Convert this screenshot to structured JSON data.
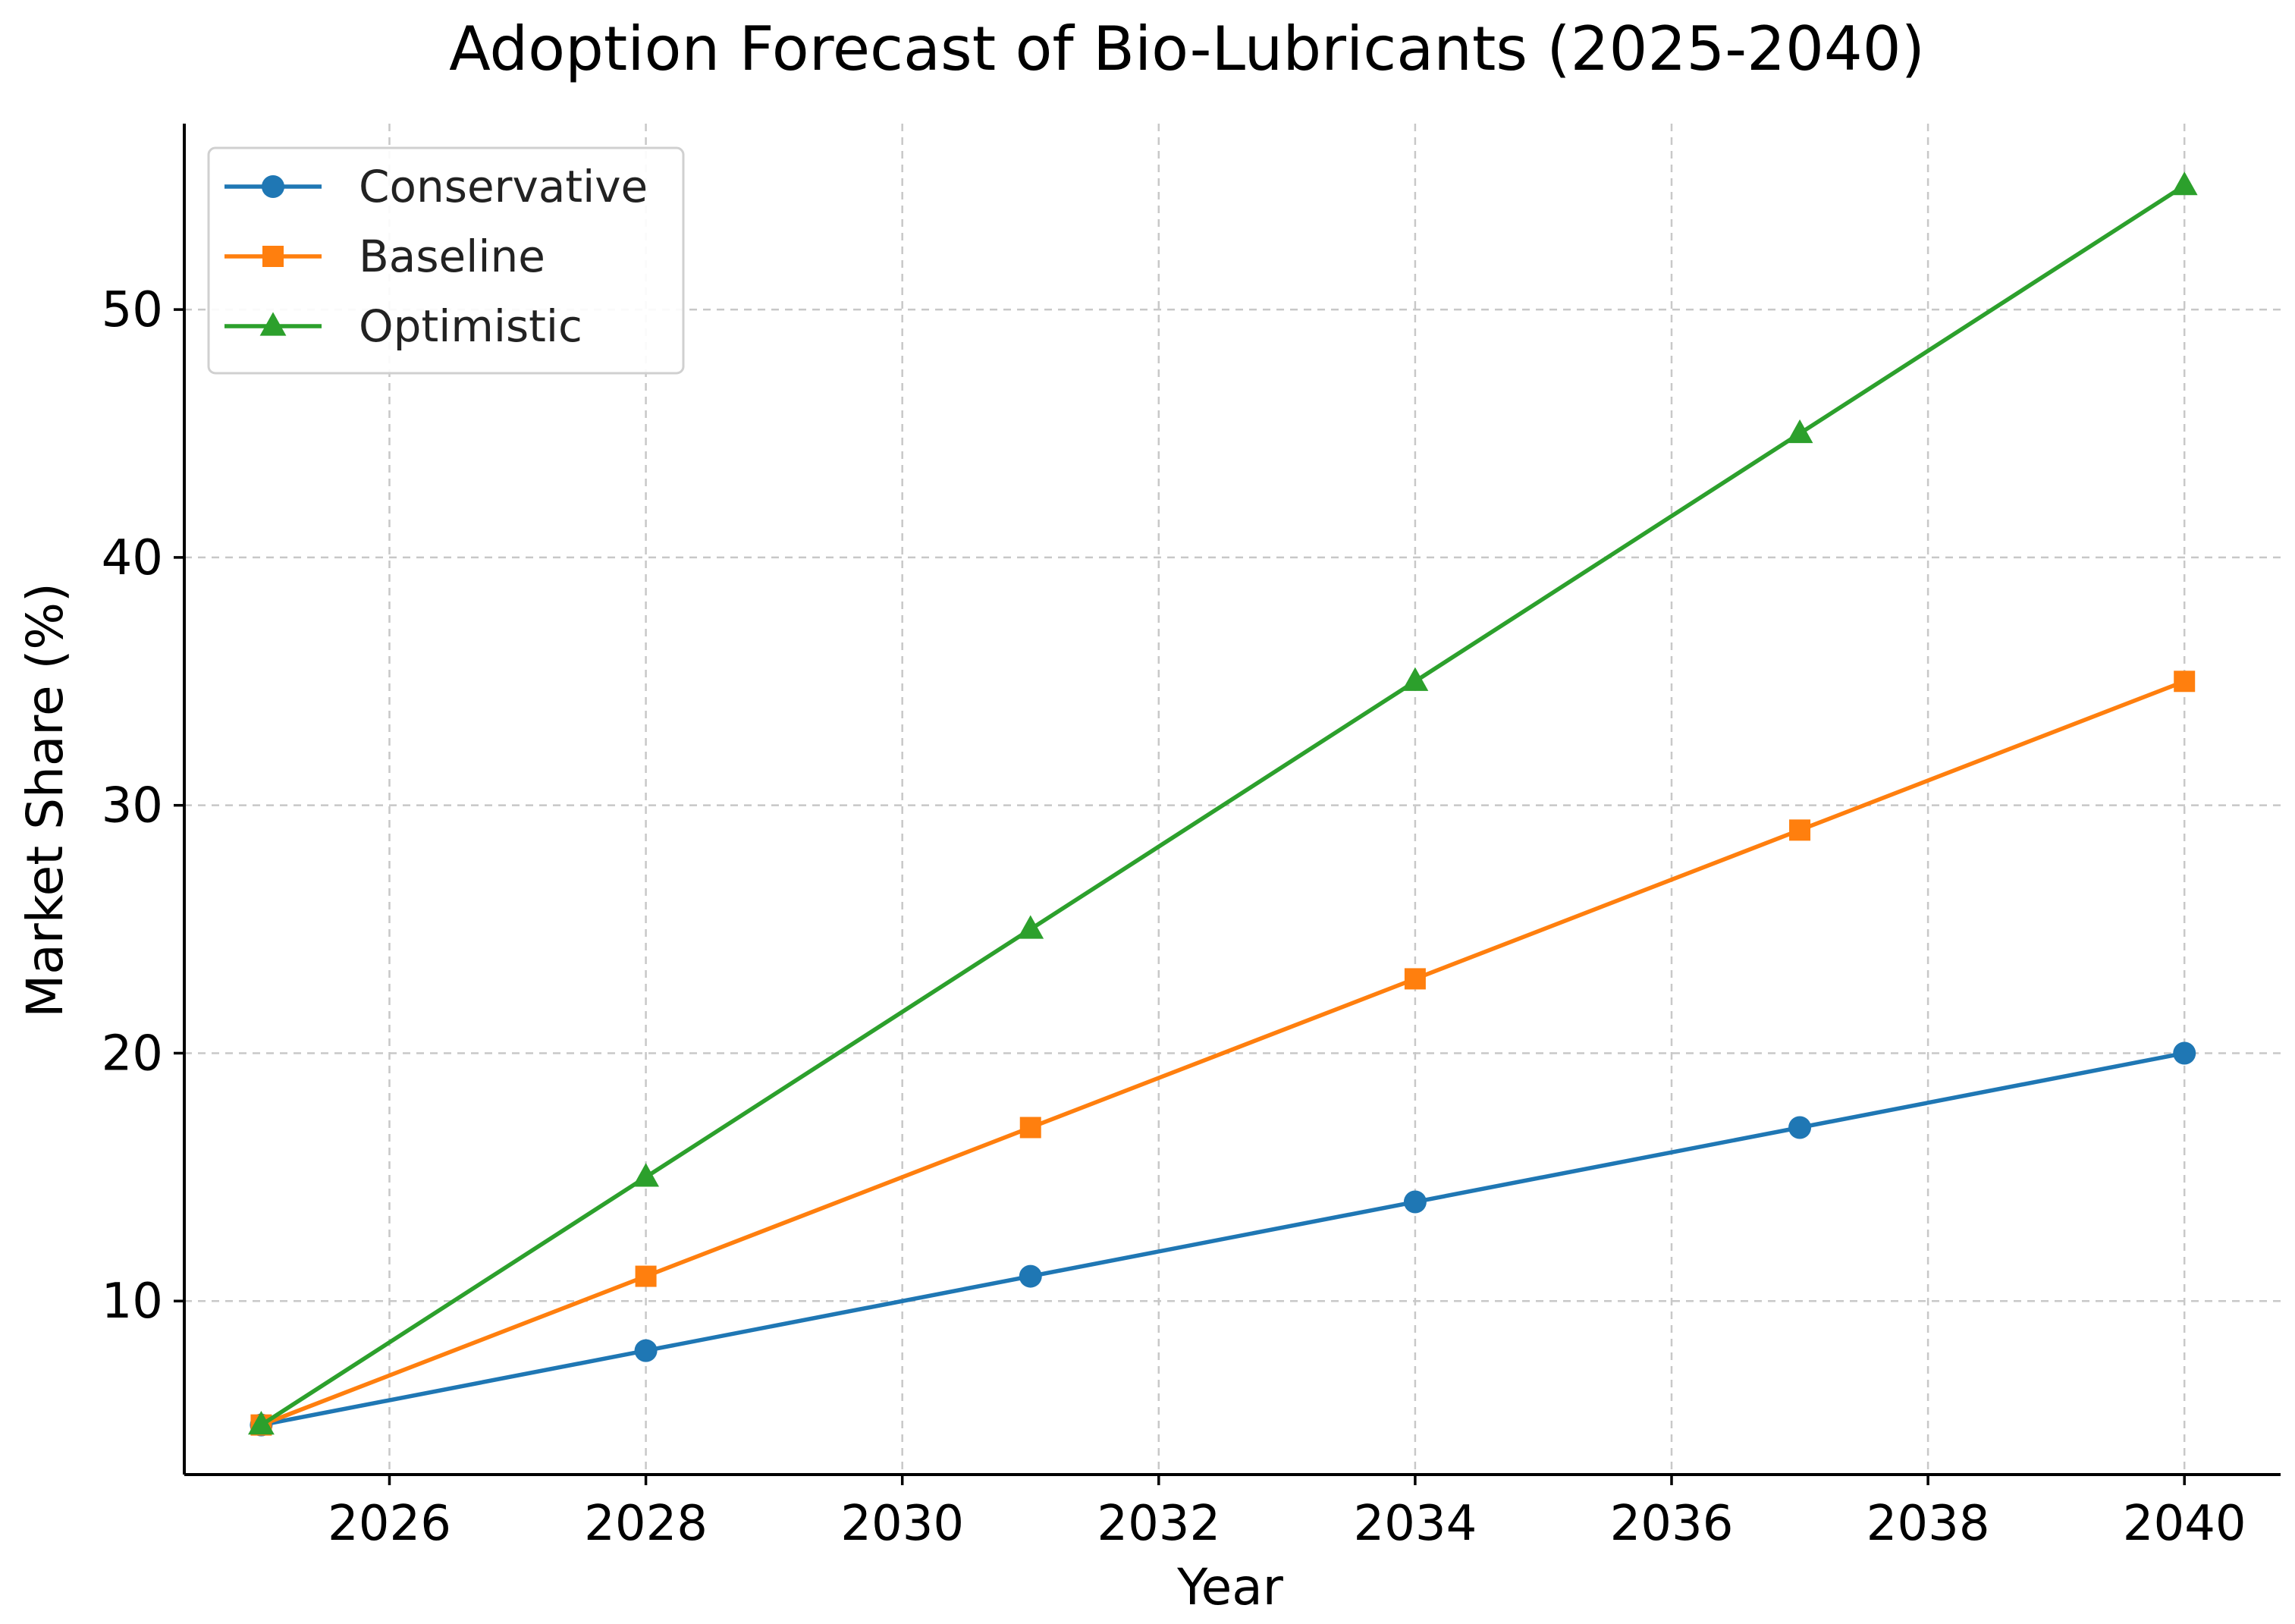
{
  "chart_data": {
    "type": "line",
    "title": "Adoption Forecast of Bio-Lubricants (2025-2040)",
    "xlabel": "Year",
    "ylabel": "Market Share (%)",
    "x": [
      2025,
      2028,
      2031,
      2034,
      2037,
      2040
    ],
    "xlim": [
      2024.4,
      2040.75
    ],
    "ylim": [
      3.0,
      57.5
    ],
    "xticks": [
      2026,
      2028,
      2030,
      2032,
      2034,
      2036,
      2038,
      2040
    ],
    "yticks": [
      10,
      20,
      30,
      40,
      50
    ],
    "xtick_labels": [
      "2026",
      "2028",
      "2030",
      "2032",
      "2034",
      "2036",
      "2038",
      "2040"
    ],
    "ytick_labels": [
      "10",
      "20",
      "30",
      "40",
      "50"
    ],
    "grid": true,
    "legend_position": "top-left",
    "series": [
      {
        "name": "Conservative",
        "color": "#1f77b4",
        "marker": "circle",
        "values": [
          5,
          8,
          11,
          14,
          17,
          20
        ]
      },
      {
        "name": "Baseline",
        "color": "#ff7f0e",
        "marker": "square",
        "values": [
          5,
          11,
          17,
          23,
          29,
          35
        ]
      },
      {
        "name": "Optimistic",
        "color": "#2ca02c",
        "marker": "triangle",
        "values": [
          5,
          15,
          25,
          35,
          45,
          55
        ]
      }
    ]
  }
}
